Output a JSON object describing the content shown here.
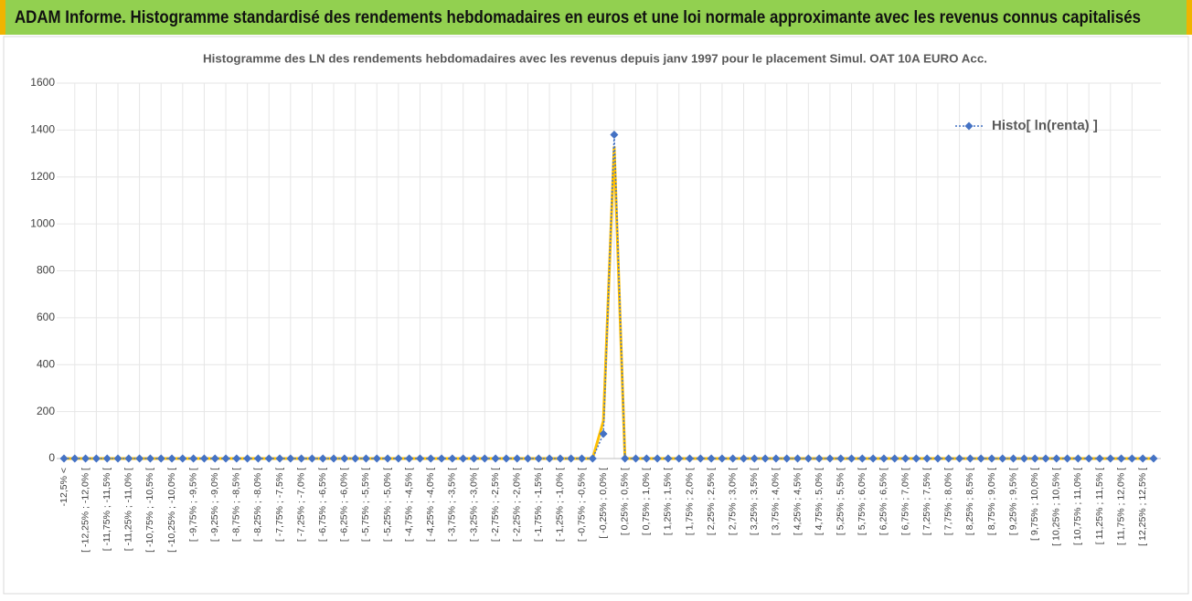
{
  "header": {
    "title": "ADAM Informe. Histogramme standardisé des rendements hebdomadaires en euros et une loi normale approximante avec les revenus connus capitalisés"
  },
  "chart_data": {
    "type": "line",
    "title": "Histogramme des LN des rendements hebdomadaires avec les revenus depuis janv 1997 pour le placement Simul. OAT 10A EURO Acc.",
    "categories": [
      "-12,5% <",
      null,
      "[ -12,25% ; -12,0% [",
      null,
      "[ -11,75% ; -11,5% [",
      null,
      "[ -11,25% ; -11,0% [",
      null,
      "[ -10,75% ; -10,5% [",
      null,
      "[ -10,25% ; -10,0% [",
      null,
      "[ -9,75% ; -9,5% [",
      null,
      "[ -9,25% ; -9,0% [",
      null,
      "[ -8,75% ; -8,5% [",
      null,
      "[ -8,25% ; -8,0% [",
      null,
      "[ -7,75% ; -7,5% [",
      null,
      "[ -7,25% ; -7,0% [",
      null,
      "[ -6,75% ; -6,5% [",
      null,
      "[ -6,25% ; -6,0% [",
      null,
      "[ -5,75% ; -5,5% [",
      null,
      "[ -5,25% ; -5,0% [",
      null,
      "[ -4,75% ; -4,5% [",
      null,
      "[ -4,25% ; -4,0% [",
      null,
      "[ -3,75% ; -3,5% [",
      null,
      "[ -3,25% ; -3,0% [",
      null,
      "[ -2,75% ; -2,5% [",
      null,
      "[ -2,25% ; -2,0% [",
      null,
      "[ -1,75% ; -1,5% [",
      null,
      "[ -1,25% ; -1,0% [",
      null,
      "[ -0,75% ; -0,5% [",
      null,
      "[ -0,25% ; 0,0% [",
      null,
      "[ 0,25% ; 0,5% [",
      null,
      "[ 0,75% ; 1,0% [",
      null,
      "[ 1,25% ; 1,5% [",
      null,
      "[ 1,75% ; 2,0% [",
      null,
      "[ 2,25% ; 2,5% [",
      null,
      "[ 2,75% ; 3,0% [",
      null,
      "[ 3,25% ; 3,5% [",
      null,
      "[ 3,75% ; 4,0% [",
      null,
      "[ 4,25% ; 4,5% [",
      null,
      "[ 4,75% ; 5,0% [",
      null,
      "[ 5,25% ; 5,5% [",
      null,
      "[ 5,75% ; 6,0% [",
      null,
      "[ 6,25% ; 6,5% [",
      null,
      "[ 6,75% ; 7,0% [",
      null,
      "[ 7,25% ; 7,5% [",
      null,
      "[ 7,75% ; 8,0% [",
      null,
      "[ 8,25% ; 8,5% [",
      null,
      "[ 8,75% ; 9,0% [",
      null,
      "[ 9,25% ; 9,5% [",
      null,
      "[ 9,75% ; 10,0% [",
      null,
      "[ 10,25% ; 10,5% [",
      null,
      "[ 10,75% ; 11,0% [",
      null,
      "[ 11,25% ; 11,5% [",
      null,
      "[ 11,75% ; 12,0% [",
      null,
      "[ 12,25% ; 12,5% [",
      null
    ],
    "series": [
      {
        "name": "Histo[ ln(renta) ]",
        "color": "#4472c4",
        "values": [
          0,
          0,
          0,
          0,
          0,
          0,
          0,
          0,
          0,
          0,
          0,
          0,
          0,
          0,
          0,
          0,
          0,
          0,
          0,
          0,
          0,
          0,
          0,
          0,
          0,
          0,
          0,
          0,
          0,
          0,
          0,
          0,
          0,
          0,
          0,
          0,
          0,
          0,
          0,
          0,
          0,
          0,
          0,
          0,
          0,
          0,
          0,
          0,
          0,
          0,
          105,
          1380,
          0,
          0,
          0,
          0,
          0,
          0,
          0,
          0,
          0,
          0,
          0,
          0,
          0,
          0,
          0,
          0,
          0,
          0,
          0,
          0,
          0,
          0,
          0,
          0,
          0,
          0,
          0,
          0,
          0,
          0,
          0,
          0,
          0,
          0,
          0,
          0,
          0,
          0,
          0,
          0,
          0,
          0,
          0,
          0,
          0,
          0,
          0,
          0,
          0,
          0
        ]
      },
      {
        "color": "#ffc000",
        "values": [
          0,
          0,
          0,
          0,
          0,
          0,
          0,
          0,
          0,
          0,
          0,
          0,
          0,
          0,
          0,
          0,
          0,
          0,
          0,
          0,
          0,
          0,
          0,
          0,
          0,
          0,
          0,
          0,
          0,
          0,
          0,
          0,
          0,
          0,
          0,
          0,
          0,
          0,
          0,
          0,
          0,
          0,
          0,
          0,
          0,
          0,
          0,
          0,
          0,
          0,
          160,
          1330,
          0,
          0,
          0,
          0,
          0,
          0,
          0,
          0,
          0,
          0,
          0,
          0,
          0,
          0,
          0,
          0,
          0,
          0,
          0,
          0,
          0,
          0,
          0,
          0,
          0,
          0,
          0,
          0,
          0,
          0,
          0,
          0,
          0,
          0,
          0,
          0,
          0,
          0,
          0,
          0,
          0,
          0,
          0,
          0,
          0,
          0,
          0,
          0,
          0,
          0
        ]
      }
    ],
    "ylim": [
      0,
      1600
    ],
    "yticks": [
      0,
      200,
      400,
      600,
      800,
      1000,
      1200,
      1400,
      1600
    ],
    "grid": true,
    "legend": "top-right"
  }
}
